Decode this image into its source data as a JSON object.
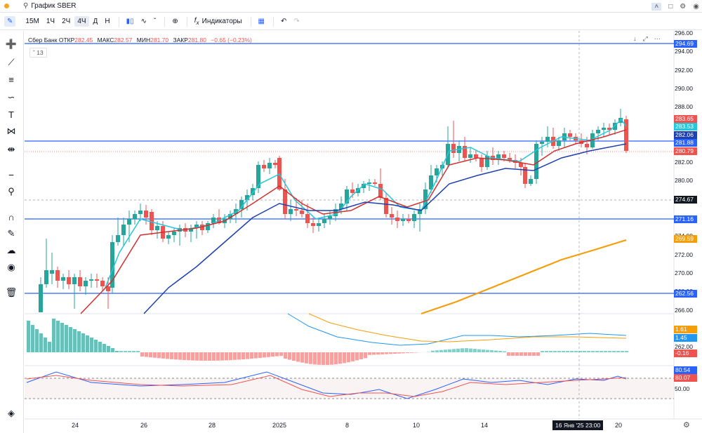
{
  "titlebar": {
    "search_title": "График SBER"
  },
  "toolbar": {
    "intervals": [
      "15M",
      "1Ч",
      "2Ч",
      "4Ч",
      "Д",
      "Н"
    ],
    "active_interval": "4Ч",
    "indicators_label": "Индикаторы"
  },
  "legend": {
    "symbol": "Сбер Банк",
    "open_label": "ОТКР",
    "open": "282.45",
    "high_label": "МАКС",
    "high": "282.57",
    "low_label": "МИН",
    "low": "281.70",
    "close_label": "ЗАКР",
    "close": "281.80",
    "change": "−0.65 (−0.23%)",
    "indicator_count": "13"
  },
  "price_axis": {
    "ticks": [
      "296.00",
      "294.00",
      "292.00",
      "290.00",
      "288.00",
      "286.00",
      "284.00",
      "282.00",
      "280.00",
      "278.00",
      "276.00",
      "274.00",
      "272.00",
      "270.00",
      "268.00",
      "266.00",
      "264.00",
      "262.00"
    ],
    "tags": [
      {
        "label": "294.69",
        "color": "#2962ff"
      },
      {
        "label": "283.65",
        "color": "#ef5350"
      },
      {
        "label": "283.53",
        "color": "#26c6da"
      },
      {
        "label": "282.06",
        "color": "#1e40af"
      },
      {
        "label": "281.88",
        "color": "#2962ff"
      },
      {
        "label": "280.79",
        "color": "#ef5350"
      },
      {
        "label": "274.67",
        "color": "#131722"
      },
      {
        "label": "271.16",
        "color": "#2962ff"
      },
      {
        "label": "269.59",
        "color": "#f59e0b"
      },
      {
        "label": "262.56",
        "color": "#2962ff"
      }
    ]
  },
  "macd_axis": {
    "tags": [
      {
        "label": "1.61",
        "color": "#f59e0b"
      },
      {
        "label": "1.45",
        "color": "#2196f3"
      },
      {
        "label": "-0.16",
        "color": "#ef5350"
      }
    ]
  },
  "stoch_axis": {
    "tags": [
      {
        "label": "80.54",
        "color": "#2962ff"
      },
      {
        "label": "80.07",
        "color": "#ef5350"
      }
    ],
    "tick": "50.00"
  },
  "time_axis": {
    "labels": [
      "24",
      "26",
      "28",
      "2025",
      "8",
      "10",
      "14",
      "20"
    ],
    "crosshair": "16 Янв '25   23:00"
  },
  "colors": {
    "up": "#26a69a",
    "down": "#ef5350",
    "hline": "#2962ff",
    "ema_fast": "#26c6da",
    "ema_mid": "#d32f2f",
    "ema_slow": "#1e40af",
    "ema_long": "#f59e0b"
  }
}
